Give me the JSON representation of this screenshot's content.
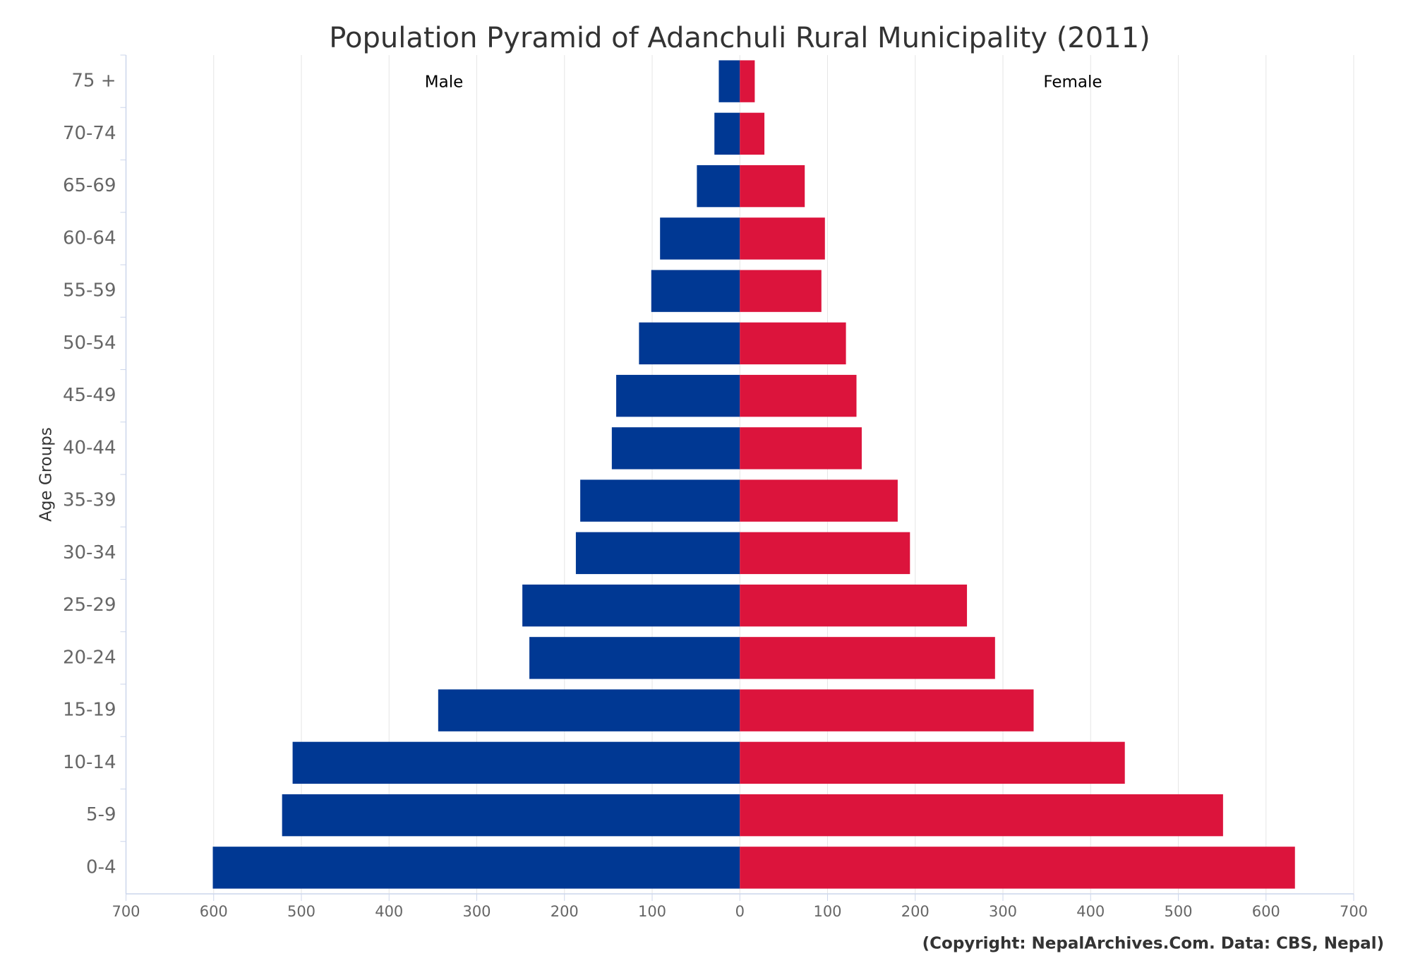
{
  "chart_data": {
    "type": "pyramid",
    "title": "Population Pyramid of Adanchuli Rural Municipality (2011)",
    "y_label": "Age Groups",
    "source": "(Copyright: NepalArchives.Com. Data: CBS, Nepal)",
    "categories": [
      "75 +",
      "70-74",
      "65-69",
      "60-64",
      "55-59",
      "50-54",
      "45-49",
      "40-44",
      "35-39",
      "30-34",
      "25-29",
      "20-24",
      "15-19",
      "10-14",
      "5-9",
      "0-4"
    ],
    "series": [
      {
        "name": "Male",
        "color": "#003893",
        "values": [
          -24,
          -29,
          -49,
          -91,
          -101,
          -115,
          -141,
          -146,
          -182,
          -187,
          -248,
          -240,
          -344,
          -510,
          -522,
          -601
        ]
      },
      {
        "name": "Female",
        "color": "#dc143c",
        "values": [
          17,
          28,
          74,
          97,
          93,
          121,
          133,
          139,
          180,
          194,
          259,
          291,
          335,
          439,
          551,
          633
        ]
      }
    ],
    "xlim": [
      -700,
      700
    ],
    "xticks": [
      {
        "value": -700,
        "label": "700"
      },
      {
        "value": -600,
        "label": "600"
      },
      {
        "value": -500,
        "label": "500"
      },
      {
        "value": -400,
        "label": "400"
      },
      {
        "value": -300,
        "label": "300"
      },
      {
        "value": -200,
        "label": "200"
      },
      {
        "value": -100,
        "label": "100"
      },
      0,
      100,
      200,
      300,
      400,
      500,
      600,
      700
    ],
    "grid": true
  }
}
